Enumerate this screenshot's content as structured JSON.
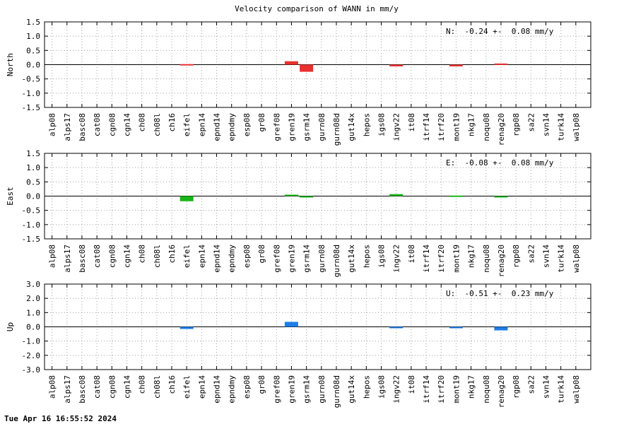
{
  "title": "Velocity comparison of WANN in mm/y",
  "timestamp": "Tue Apr 16 16:55:52 2024",
  "chart_data": [
    {
      "type": "bar",
      "ylabel": "North",
      "ylim": [
        -1.5,
        1.5
      ],
      "yticks": [
        "1.5",
        "1.0",
        "0.5",
        "0.0",
        "-0.5",
        "-1.0",
        "-1.5"
      ],
      "grid": true,
      "summary": "N:  -0.24 +-  0.08 mm/y",
      "color": "#e8302f",
      "categories": [
        "alp08",
        "alps17",
        "basc08",
        "cat08",
        "cgn08",
        "cgn14",
        "ch08",
        "ch08l",
        "ch16",
        "eifel",
        "epn14",
        "epnd14",
        "epndmy",
        "esp08",
        "gr08",
        "gref08",
        "gren19",
        "gsrm14",
        "gurn08",
        "gurn08d",
        "gut14x",
        "hepos",
        "igs08",
        "ingv22",
        "it08",
        "itrf14",
        "itrf20",
        "mont19",
        "nkg17",
        "noqu08",
        "renag20",
        "rgp08",
        "sa22",
        "svn14",
        "turk14",
        "walp08"
      ],
      "values": [
        0,
        0,
        0,
        0,
        0,
        0,
        0,
        0,
        0,
        0.02,
        0,
        0,
        0,
        0,
        0,
        0,
        0.12,
        -0.25,
        0,
        0,
        0,
        0,
        0,
        -0.06,
        0,
        0,
        0,
        -0.06,
        0,
        0,
        0.04,
        0,
        0,
        0,
        0,
        0
      ]
    },
    {
      "type": "bar",
      "ylabel": "East",
      "ylim": [
        -1.5,
        1.5
      ],
      "yticks": [
        "1.5",
        "1.0",
        "0.5",
        "0.0",
        "-0.5",
        "-1.0",
        "-1.5"
      ],
      "grid": true,
      "summary": "E:  -0.08 +-  0.08 mm/y",
      "color": "#18b418",
      "categories": [
        "alp08",
        "alps17",
        "basc08",
        "cat08",
        "cgn08",
        "cgn14",
        "ch08",
        "ch08l",
        "ch16",
        "eifel",
        "epn14",
        "epnd14",
        "epndmy",
        "esp08",
        "gr08",
        "gref08",
        "gren19",
        "gsrm14",
        "gurn08",
        "gurn08d",
        "gut14x",
        "hepos",
        "igs08",
        "ingv22",
        "it08",
        "itrf14",
        "itrf20",
        "mont19",
        "nkg17",
        "noqu08",
        "renag20",
        "rgp08",
        "sa22",
        "svn14",
        "turk14",
        "walp08"
      ],
      "values": [
        0,
        0,
        0,
        0,
        0,
        0,
        0,
        0,
        0,
        -0.18,
        0,
        0,
        0,
        0,
        0,
        0,
        0.05,
        -0.05,
        0,
        0,
        0,
        0,
        0,
        0.07,
        0,
        0,
        0,
        0.02,
        0,
        0,
        -0.02,
        0,
        0,
        0,
        0,
        0
      ]
    },
    {
      "type": "bar",
      "ylabel": "Up",
      "ylim": [
        -3.0,
        3.0
      ],
      "yticks": [
        "3.0",
        "2.0",
        "1.0",
        "0.0",
        "-1.0",
        "-2.0",
        "-3.0"
      ],
      "grid": true,
      "summary": "U:  -0.51 +-  0.23 mm/y",
      "color": "#1e7de6",
      "categories": [
        "alp08",
        "alps17",
        "basc08",
        "cat08",
        "cgn08",
        "cgn14",
        "ch08",
        "ch08l",
        "ch16",
        "eifel",
        "epn14",
        "epnd14",
        "epndmy",
        "esp08",
        "gr08",
        "gref08",
        "gren19",
        "gsrm14",
        "gurn08",
        "gurn08d",
        "gut14x",
        "hepos",
        "igs08",
        "ingv22",
        "it08",
        "itrf14",
        "itrf20",
        "mont19",
        "nkg17",
        "noqu08",
        "renag20",
        "rgp08",
        "sa22",
        "svn14",
        "turk14",
        "walp08"
      ],
      "values": [
        0,
        0,
        0,
        0,
        0,
        0,
        0,
        0,
        0,
        -0.15,
        0,
        0,
        0,
        0,
        0,
        0,
        0.35,
        0,
        0,
        0,
        0,
        0,
        0,
        -0.1,
        0,
        0,
        0,
        -0.1,
        0,
        0,
        -0.25,
        0,
        0,
        0,
        0,
        0
      ]
    }
  ]
}
